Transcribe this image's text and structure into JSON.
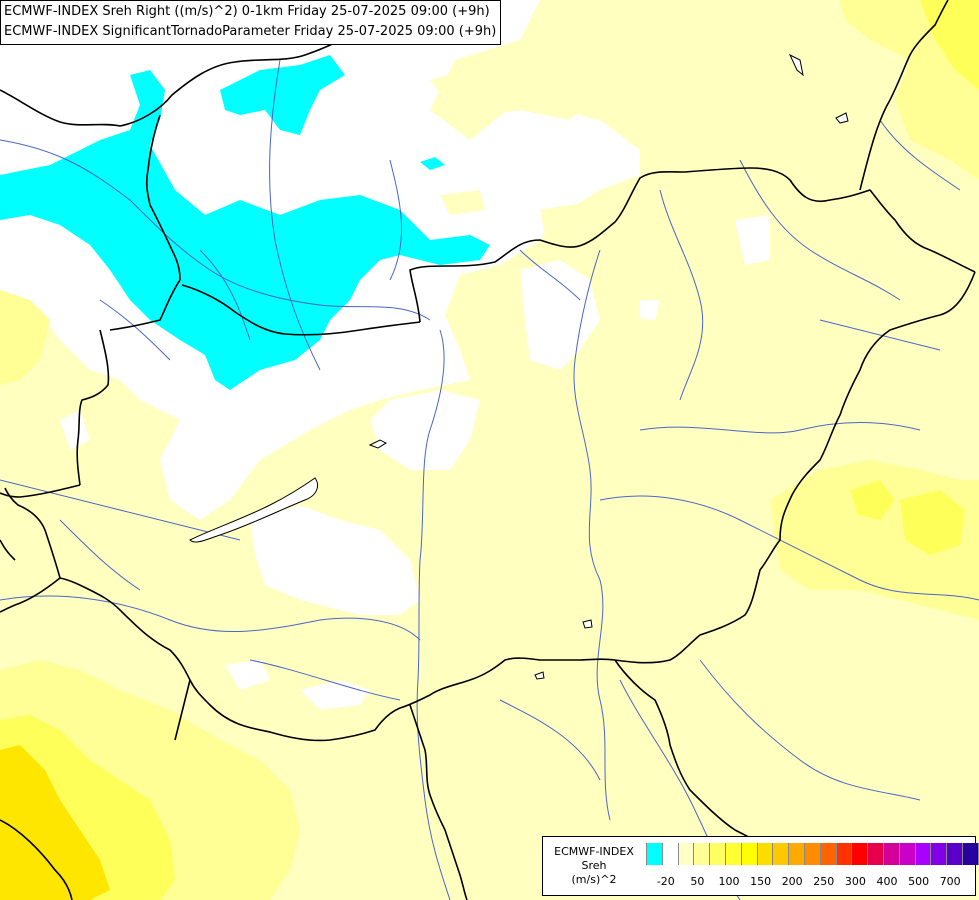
{
  "header": {
    "line1": "ECMWF-INDEX Sreh Right ((m/s)^2) 0-1km Friday 25-07-2025 09:00 (+9h)",
    "line2": "ECMWF-INDEX SignificantTornadoParameter Friday 25-07-2025 09:00 (+9h)"
  },
  "legend": {
    "title_line1": "ECMWF-INDEX",
    "title_line2": "Sreh",
    "title_line3": "(m/s)^2",
    "colors": [
      "#00ffff",
      "#ffffff",
      "#ffffc8",
      "#ffff96",
      "#ffff64",
      "#ffff32",
      "#ffff00",
      "#ffdc00",
      "#ffc800",
      "#ffaa00",
      "#ff8c00",
      "#ff6400",
      "#ff3200",
      "#ff0000",
      "#e6004b",
      "#d20096",
      "#c800c8",
      "#aa00ff",
      "#8200e6",
      "#5a00c8",
      "#2800a0",
      "#000080"
    ],
    "ticks": [
      "-20",
      "50",
      "100",
      "150",
      "200",
      "250",
      "300",
      "400",
      "500",
      "700"
    ]
  },
  "map_colors": {
    "cyan": "#00ffff",
    "white": "#ffffff",
    "pale_yellow": "#ffffc0",
    "yellow_light": "#ffff96",
    "yellow": "#ffff5a",
    "yellow_strong": "#ffe600",
    "border": "#000000",
    "river": "#4a66c8"
  }
}
